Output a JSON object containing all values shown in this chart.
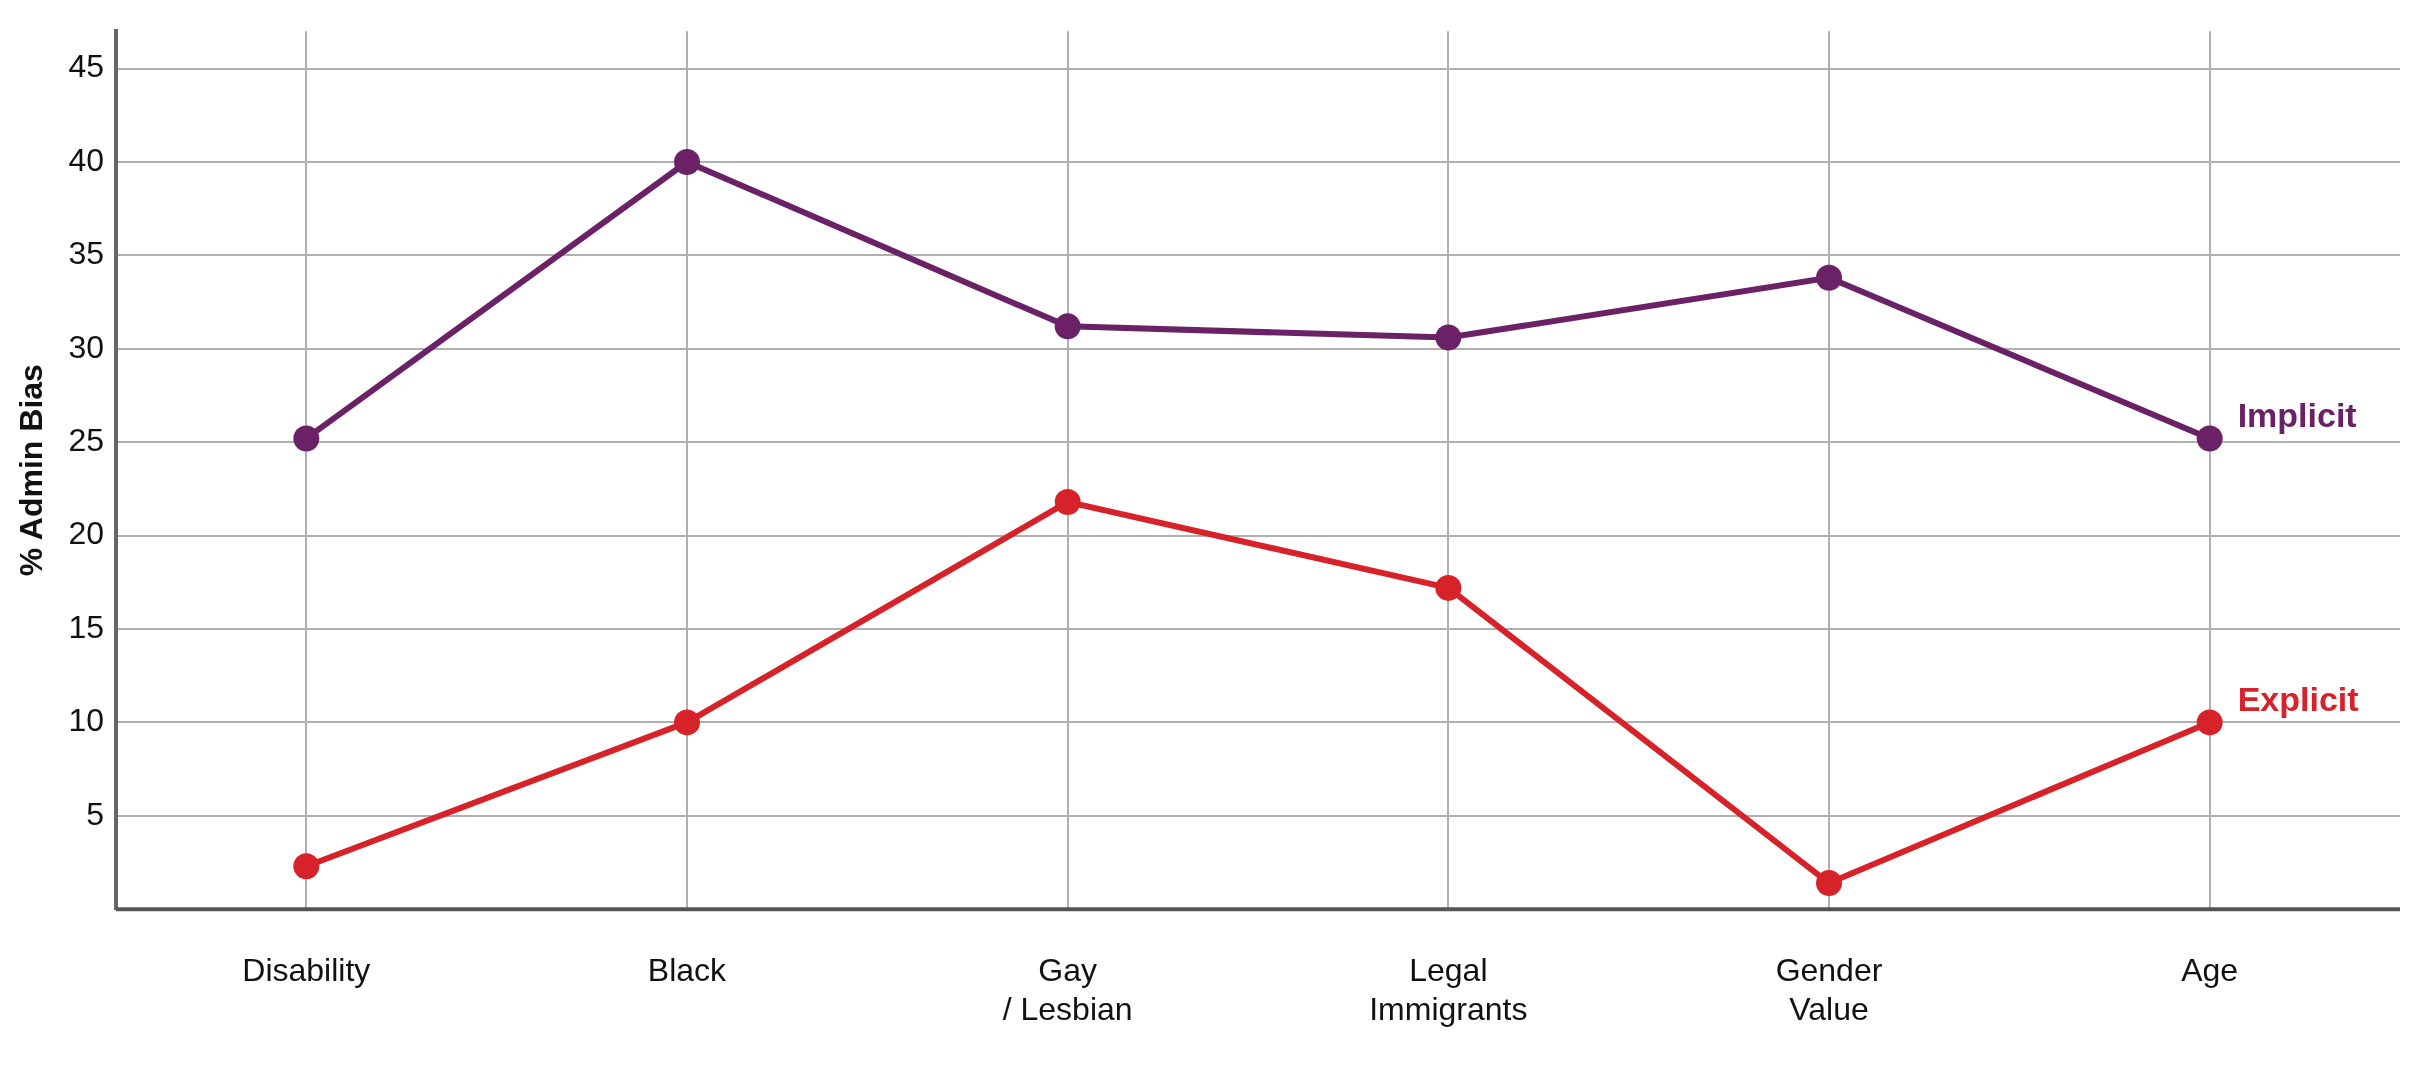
{
  "chart_data": {
    "type": "line",
    "ylabel": "% Admin Bias",
    "categories": [
      "Disability",
      "Black",
      "Gay\n/ Lesbian",
      "Legal\nImmigrants",
      "Gender\nValue",
      "Age"
    ],
    "series": [
      {
        "name": "Implicit",
        "color": "#6b2166",
        "values": [
          25.2,
          40.0,
          31.2,
          30.6,
          33.8,
          25.2
        ]
      },
      {
        "name": "Explicit",
        "color": "#d7222a",
        "values": [
          2.3,
          10.0,
          21.8,
          17.2,
          1.4,
          10.0
        ]
      }
    ],
    "ylim": [
      0,
      47
    ],
    "yticks": [
      5,
      10,
      15,
      20,
      25,
      30,
      35,
      40,
      45
    ],
    "grid": true,
    "legend": false,
    "marker": "circle",
    "line_style": "solid"
  }
}
